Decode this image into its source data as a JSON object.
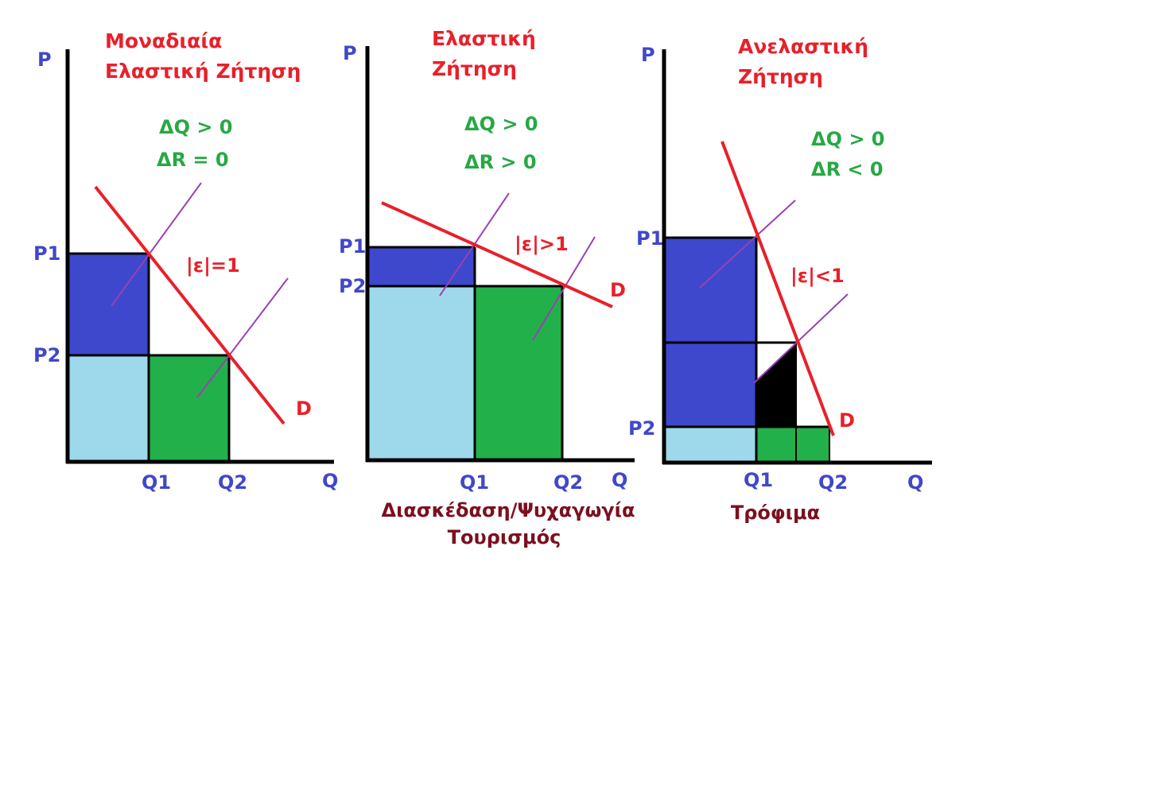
{
  "colors": {
    "axis": "#000000",
    "demand": "#e8202a",
    "supply": "#9b3fb5",
    "title": "#e8202a",
    "axis_label": "#4047c8",
    "delta": "#27a845",
    "caption": "#7b1020",
    "fill_dark_blue": "#3e48cc",
    "fill_light_blue": "#9dd9ea",
    "fill_green": "#22b04b",
    "fill_black": "#000000"
  },
  "panels": [
    {
      "id": "unit-elastic",
      "title_line1": "Μοναδιαία",
      "title_line2": "Ελαστική Ζήτηση",
      "p_axis": "P",
      "q_axis": "Q",
      "p1": "P1",
      "p2": "P2",
      "q1": "Q1",
      "q2": "Q2",
      "delta_q": "ΔQ > 0",
      "delta_r": "ΔR = 0",
      "elasticity": "|ε|=1",
      "demand_label": "D",
      "caption_line1": "",
      "caption_line2": ""
    },
    {
      "id": "elastic",
      "title_line1": "Ελαστική",
      "title_line2": "Ζήτηση",
      "p_axis": "P",
      "q_axis": "Q",
      "p1": "P1",
      "p2": "P2",
      "q1": "Q1",
      "q2": "Q2",
      "delta_q": "ΔQ > 0",
      "delta_r": "ΔR > 0",
      "elasticity": "|ε|>1",
      "demand_label": "D",
      "caption_line1": "Διασκέδαση/Ψυχαγωγία",
      "caption_line2": "Τουρισμός"
    },
    {
      "id": "inelastic",
      "title_line1": "Ανελαστική",
      "title_line2": "Ζήτηση",
      "p_axis": "P",
      "q_axis": "Q",
      "p1": "P1",
      "p2": "P2",
      "q1": "Q1",
      "q2": "Q2",
      "delta_q": "ΔQ > 0",
      "delta_r": "ΔR < 0",
      "elasticity": "|ε|<1",
      "demand_label": "D",
      "caption_line1": "Τρόφιμα",
      "caption_line2": ""
    }
  ]
}
